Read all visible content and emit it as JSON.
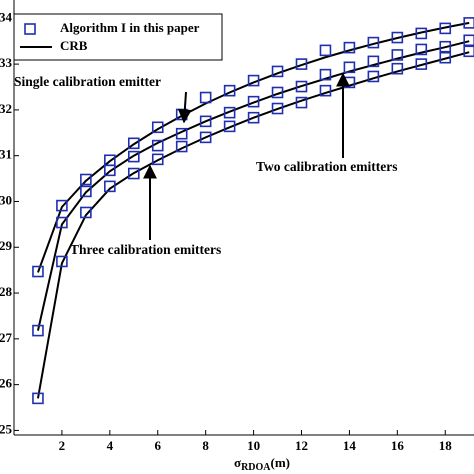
{
  "chart_data": {
    "type": "line",
    "x": [
      1,
      2,
      3,
      4,
      5,
      6,
      7,
      8,
      9,
      10,
      11,
      12,
      13,
      14,
      15,
      16,
      17,
      18,
      19
    ],
    "xlim": [
      0,
      19.2
    ],
    "xticks": [
      2,
      4,
      6,
      8,
      10,
      12,
      14,
      16,
      18
    ],
    "ylim": [
      24.9,
      34.4
    ],
    "yticks": [
      25,
      26,
      27,
      28,
      29,
      30,
      31,
      32,
      33,
      34
    ],
    "xlabel": {
      "symbol": "σ",
      "subscript": "RDOA",
      "unit": "(m)"
    },
    "grid": false,
    "legend": {
      "position": "upper left",
      "entries": [
        {
          "label": "Algorithm I in this paper",
          "marker": "square",
          "color": "#1f2fb0"
        },
        {
          "label": "CRB",
          "marker": "line",
          "color": "#000000"
        }
      ]
    },
    "series": [
      {
        "marker": "square",
        "color": "#1f2fb0",
        "values": [
          28.47,
          29.91,
          30.48,
          30.9,
          31.27,
          31.62,
          31.9,
          32.27,
          32.42,
          32.64,
          32.84,
          33.0,
          33.3,
          33.36,
          33.47,
          33.58,
          33.67,
          33.78,
          33.9
        ]
      },
      {
        "marker": "square",
        "color": "#1f2fb0",
        "values": [
          27.18,
          29.54,
          30.22,
          30.68,
          30.98,
          31.22,
          31.48,
          31.75,
          31.94,
          32.18,
          32.38,
          32.51,
          32.77,
          32.93,
          33.06,
          33.2,
          33.32,
          33.38,
          33.52
        ]
      },
      {
        "marker": "square",
        "color": "#1f2fb0",
        "values": [
          25.7,
          28.69,
          29.76,
          30.33,
          30.61,
          30.92,
          31.2,
          31.4,
          31.64,
          31.83,
          32.03,
          32.16,
          32.42,
          32.6,
          32.73,
          32.9,
          33.0,
          33.14,
          33.28
        ]
      },
      {
        "marker": "line",
        "color": "#000000",
        "values": [
          28.45,
          29.88,
          30.45,
          30.88,
          31.25,
          31.58,
          31.87,
          32.14,
          32.38,
          32.6,
          32.8,
          32.98,
          33.15,
          33.3,
          33.44,
          33.57,
          33.69,
          33.8,
          33.9
        ]
      },
      {
        "marker": "line",
        "color": "#000000",
        "values": [
          27.18,
          29.5,
          30.2,
          30.66,
          31.0,
          31.28,
          31.52,
          31.75,
          31.96,
          32.16,
          32.35,
          32.52,
          32.68,
          32.84,
          32.98,
          33.12,
          33.25,
          33.37,
          33.5
        ]
      },
      {
        "marker": "line",
        "color": "#000000",
        "values": [
          25.7,
          28.65,
          29.7,
          30.28,
          30.62,
          30.9,
          31.16,
          31.4,
          31.62,
          31.83,
          32.02,
          32.2,
          32.37,
          32.53,
          32.69,
          32.84,
          32.98,
          33.12,
          33.26
        ]
      }
    ],
    "annotations": [
      {
        "text": "Single calibration emitter"
      },
      {
        "text": "Two calibration emitters"
      },
      {
        "text": "Three calibration emitters"
      }
    ]
  }
}
